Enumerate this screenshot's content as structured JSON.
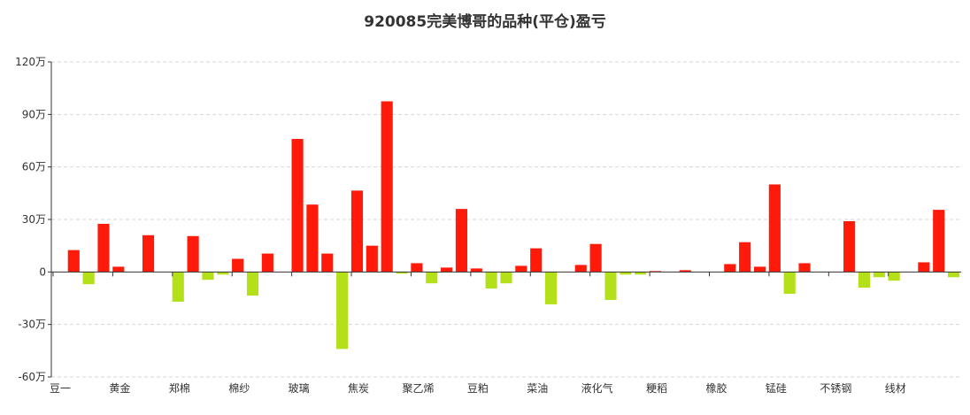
{
  "chart_data": {
    "type": "bar",
    "title": "920085完美博哥的品种(平仓)盈亏",
    "xlabel": "",
    "ylabel": "",
    "ylim": [
      -60,
      120
    ],
    "y_unit": "万",
    "y_ticks": [
      "-60万",
      "-30万",
      "0",
      "30万",
      "60万",
      "90万",
      "120万"
    ],
    "y_tick_values": [
      -60,
      -30,
      0,
      30,
      60,
      90,
      120
    ],
    "x_tick_labels": [
      "豆一",
      "黄金",
      "郑棉",
      "棉纱",
      "玻璃",
      "焦炭",
      "聚乙烯",
      "豆粕",
      "菜油",
      "液化气",
      "粳稻",
      "橡胶",
      "锰硅",
      "不锈钢",
      "线材"
    ],
    "values": [
      0,
      12.5,
      -7,
      27.5,
      3,
      0,
      21,
      0,
      -17,
      20.5,
      -4.5,
      -1.5,
      7.5,
      -13.5,
      10.5,
      0,
      76,
      38.5,
      10.5,
      -44,
      46.5,
      15,
      97.5,
      -1,
      5,
      -6.5,
      2.5,
      36,
      2,
      -9.5,
      -6.5,
      3.5,
      13.5,
      -18.5,
      0,
      4,
      16,
      -16,
      -1.5,
      -1.5,
      0.5,
      0,
      1,
      0,
      0,
      4.5,
      17,
      3,
      50,
      -12.5,
      5,
      0,
      0,
      29,
      -9,
      -3,
      -5,
      0,
      5.5,
      35.5,
      -3
    ],
    "colors": {
      "positive": "#ff1a0a",
      "negative": "#b4e01a"
    },
    "grid": true,
    "legend": "none"
  }
}
